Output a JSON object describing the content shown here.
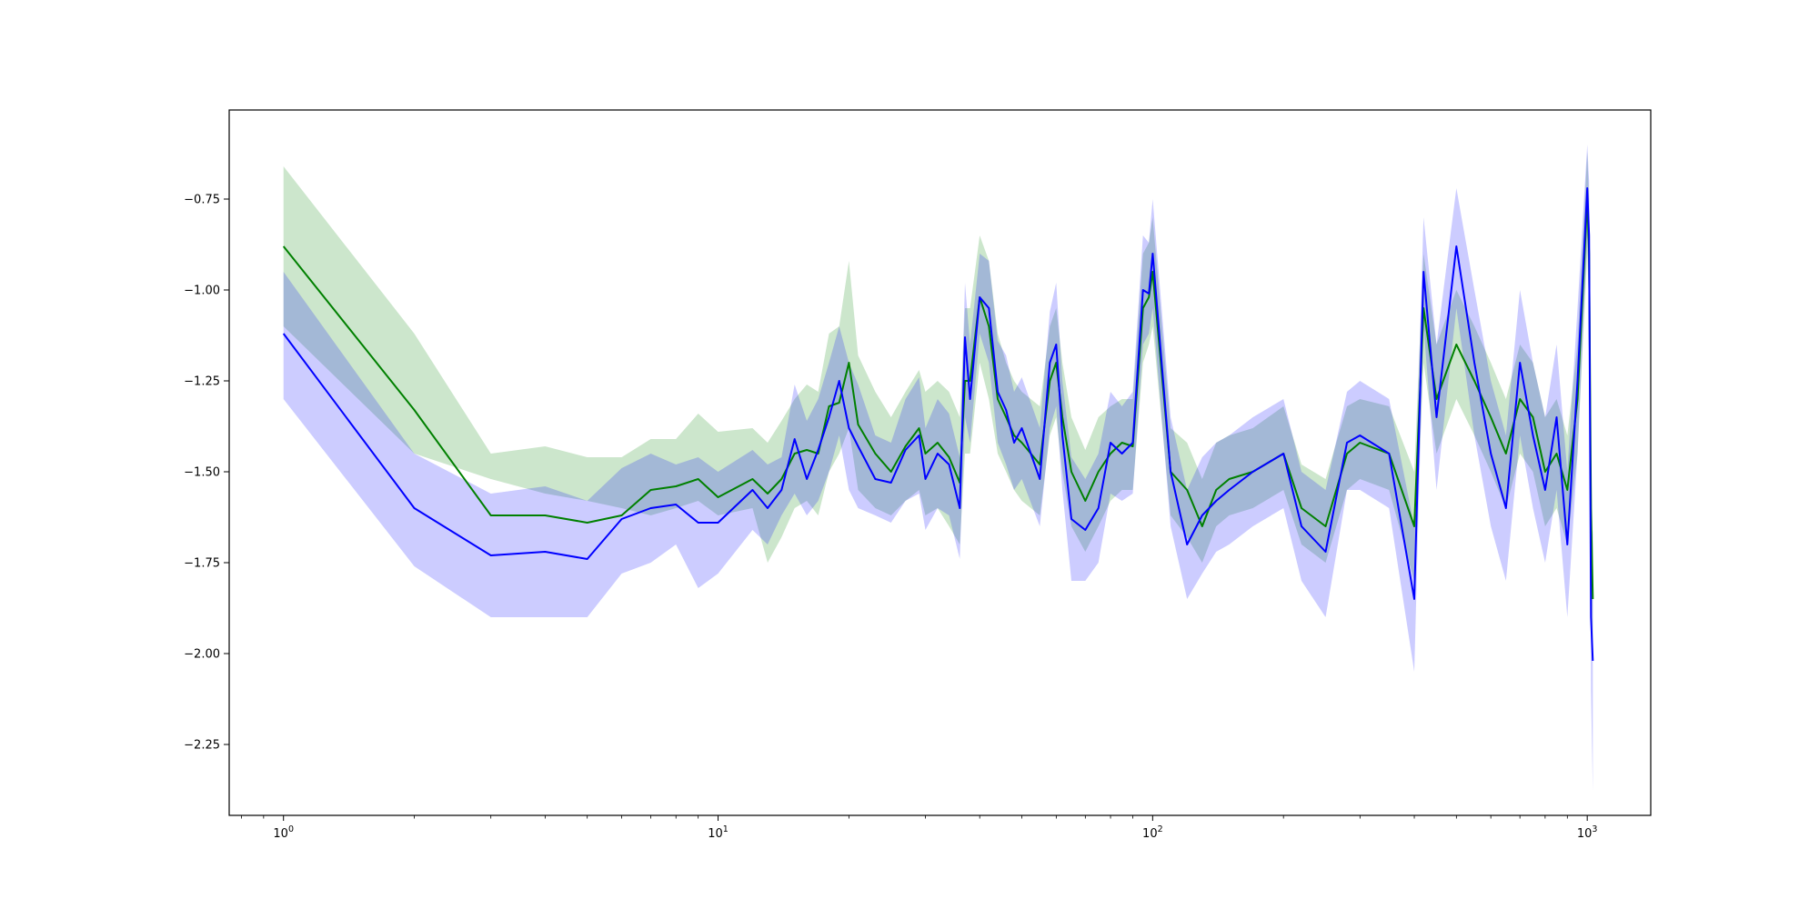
{
  "chart_data": {
    "type": "line",
    "title": "",
    "xlabel": "",
    "ylabel": "",
    "xscale": "log",
    "xlim": [
      0.75,
      1400
    ],
    "ylim": [
      -2.445,
      -0.505
    ],
    "grid": false,
    "legend": "none",
    "x_ticks": [
      {
        "value": 1,
        "label": "10^0"
      },
      {
        "value": 10,
        "label": "10^1"
      },
      {
        "value": 100,
        "label": "10^2"
      },
      {
        "value": 1000,
        "label": "10^3"
      }
    ],
    "y_ticks": [
      {
        "value": -0.75,
        "label": "−0.75"
      },
      {
        "value": -1.0,
        "label": "−1.00"
      },
      {
        "value": -1.25,
        "label": "−1.25"
      },
      {
        "value": -1.5,
        "label": "−1.50"
      },
      {
        "value": -1.75,
        "label": "−1.75"
      },
      {
        "value": -2.0,
        "label": "−2.00"
      },
      {
        "value": -2.25,
        "label": "−2.25"
      }
    ],
    "series": [
      {
        "color": "#008000",
        "band_color": "#008000",
        "band_opacity": 0.2,
        "x": [
          1,
          2,
          3,
          4,
          5,
          6,
          7,
          8,
          9,
          10,
          12,
          13,
          14,
          15,
          16,
          17,
          18,
          19,
          20,
          21,
          23,
          25,
          27,
          29,
          30,
          32,
          34,
          36,
          37,
          38,
          40,
          42,
          44,
          46,
          48,
          50,
          55,
          58,
          60,
          62,
          65,
          70,
          75,
          80,
          85,
          90,
          95,
          98,
          100,
          110,
          120,
          130,
          140,
          150,
          170,
          200,
          220,
          250,
          280,
          300,
          350,
          400,
          420,
          450,
          500,
          550,
          600,
          650,
          700,
          750,
          800,
          850,
          900,
          950,
          1000,
          1010,
          1020,
          1030
        ],
        "y": [
          -0.88,
          -1.33,
          -1.62,
          -1.62,
          -1.64,
          -1.62,
          -1.55,
          -1.54,
          -1.52,
          -1.57,
          -1.52,
          -1.56,
          -1.52,
          -1.45,
          -1.44,
          -1.45,
          -1.32,
          -1.31,
          -1.2,
          -1.37,
          -1.45,
          -1.5,
          -1.43,
          -1.38,
          -1.45,
          -1.42,
          -1.46,
          -1.53,
          -1.25,
          -1.25,
          -1.02,
          -1.1,
          -1.3,
          -1.35,
          -1.4,
          -1.42,
          -1.48,
          -1.25,
          -1.2,
          -1.35,
          -1.5,
          -1.58,
          -1.5,
          -1.45,
          -1.42,
          -1.43,
          -1.05,
          -1.02,
          -0.95,
          -1.5,
          -1.55,
          -1.65,
          -1.55,
          -1.52,
          -1.5,
          -1.45,
          -1.6,
          -1.65,
          -1.45,
          -1.42,
          -1.45,
          -1.65,
          -1.05,
          -1.3,
          -1.15,
          -1.25,
          -1.35,
          -1.45,
          -1.3,
          -1.35,
          -1.5,
          -1.45,
          -1.55,
          -1.3,
          -0.75,
          -0.9,
          -1.6,
          -1.85
        ],
        "lower": [
          -1.1,
          -1.45,
          -1.52,
          -1.56,
          -1.58,
          -1.6,
          -1.62,
          -1.6,
          -1.58,
          -1.62,
          -1.6,
          -1.75,
          -1.68,
          -1.6,
          -1.58,
          -1.62,
          -1.5,
          -1.45,
          -1.38,
          -1.55,
          -1.6,
          -1.62,
          -1.58,
          -1.55,
          -1.62,
          -1.6,
          -1.65,
          -1.7,
          -1.45,
          -1.45,
          -1.2,
          -1.3,
          -1.45,
          -1.5,
          -1.55,
          -1.58,
          -1.62,
          -1.4,
          -1.35,
          -1.5,
          -1.65,
          -1.72,
          -1.65,
          -1.58,
          -1.55,
          -1.55,
          -1.2,
          -1.15,
          -1.1,
          -1.62,
          -1.68,
          -1.75,
          -1.65,
          -1.62,
          -1.6,
          -1.55,
          -1.7,
          -1.75,
          -1.55,
          -1.52,
          -1.55,
          -1.8,
          -1.2,
          -1.45,
          -1.3,
          -1.4,
          -1.5,
          -1.6,
          -1.45,
          -1.5,
          -1.65,
          -1.6,
          -1.7,
          -1.45,
          -0.9,
          -1.05,
          -1.75,
          -2.0
        ],
        "upper": [
          -0.66,
          -1.12,
          -1.45,
          -1.43,
          -1.46,
          -1.46,
          -1.41,
          -1.41,
          -1.34,
          -1.39,
          -1.38,
          -1.42,
          -1.36,
          -1.3,
          -1.26,
          -1.28,
          -1.12,
          -1.1,
          -0.92,
          -1.18,
          -1.28,
          -1.35,
          -1.28,
          -1.22,
          -1.28,
          -1.25,
          -1.28,
          -1.35,
          -1.05,
          -1.05,
          -0.85,
          -0.92,
          -1.12,
          -1.2,
          -1.25,
          -1.28,
          -1.32,
          -1.1,
          -1.05,
          -1.2,
          -1.35,
          -1.44,
          -1.35,
          -1.32,
          -1.3,
          -1.3,
          -0.9,
          -0.87,
          -0.8,
          -1.38,
          -1.42,
          -1.52,
          -1.42,
          -1.4,
          -1.38,
          -1.32,
          -1.48,
          -1.52,
          -1.32,
          -1.3,
          -1.32,
          -1.5,
          -0.9,
          -1.15,
          -1.0,
          -1.1,
          -1.2,
          -1.3,
          -1.15,
          -1.2,
          -1.35,
          -1.3,
          -1.4,
          -1.15,
          -0.62,
          -0.75,
          -1.45,
          -1.7
        ]
      },
      {
        "color": "#0000ff",
        "band_color": "#0000ff",
        "band_opacity": 0.2,
        "x": [
          1,
          2,
          3,
          4,
          5,
          6,
          7,
          8,
          9,
          10,
          12,
          13,
          14,
          15,
          16,
          17,
          18,
          19,
          20,
          21,
          23,
          25,
          27,
          29,
          30,
          32,
          34,
          36,
          37,
          38,
          40,
          42,
          44,
          46,
          48,
          50,
          55,
          58,
          60,
          62,
          65,
          70,
          75,
          80,
          85,
          90,
          95,
          98,
          100,
          110,
          120,
          130,
          140,
          150,
          170,
          200,
          220,
          250,
          280,
          300,
          350,
          400,
          420,
          450,
          500,
          550,
          600,
          650,
          700,
          750,
          800,
          850,
          900,
          950,
          1000,
          1010,
          1020,
          1030
        ],
        "y": [
          -1.12,
          -1.6,
          -1.73,
          -1.72,
          -1.74,
          -1.63,
          -1.6,
          -1.59,
          -1.64,
          -1.64,
          -1.55,
          -1.6,
          -1.55,
          -1.41,
          -1.52,
          -1.44,
          -1.35,
          -1.25,
          -1.38,
          -1.43,
          -1.52,
          -1.53,
          -1.44,
          -1.4,
          -1.52,
          -1.45,
          -1.48,
          -1.6,
          -1.13,
          -1.3,
          -1.02,
          -1.05,
          -1.28,
          -1.33,
          -1.42,
          -1.38,
          -1.52,
          -1.2,
          -1.15,
          -1.4,
          -1.63,
          -1.66,
          -1.6,
          -1.42,
          -1.45,
          -1.42,
          -1.0,
          -1.01,
          -0.9,
          -1.5,
          -1.7,
          -1.62,
          -1.58,
          -1.55,
          -1.5,
          -1.45,
          -1.65,
          -1.72,
          -1.42,
          -1.4,
          -1.45,
          -1.85,
          -0.95,
          -1.35,
          -0.88,
          -1.2,
          -1.45,
          -1.6,
          -1.2,
          -1.4,
          -1.55,
          -1.35,
          -1.7,
          -1.25,
          -0.72,
          -0.85,
          -1.9,
          -2.02
        ],
        "lower": [
          -1.3,
          -1.76,
          -1.9,
          -1.9,
          -1.9,
          -1.78,
          -1.75,
          -1.7,
          -1.82,
          -1.78,
          -1.66,
          -1.7,
          -1.62,
          -1.56,
          -1.62,
          -1.58,
          -1.5,
          -1.4,
          -1.55,
          -1.6,
          -1.62,
          -1.64,
          -1.58,
          -1.56,
          -1.66,
          -1.6,
          -1.62,
          -1.74,
          -1.35,
          -1.42,
          -1.12,
          -1.2,
          -1.42,
          -1.48,
          -1.55,
          -1.52,
          -1.65,
          -1.38,
          -1.32,
          -1.55,
          -1.8,
          -1.8,
          -1.75,
          -1.56,
          -1.58,
          -1.56,
          -1.15,
          -1.12,
          -1.05,
          -1.65,
          -1.85,
          -1.78,
          -1.72,
          -1.7,
          -1.65,
          -1.6,
          -1.8,
          -1.9,
          -1.55,
          -1.55,
          -1.6,
          -2.05,
          -1.1,
          -1.55,
          -1.05,
          -1.4,
          -1.65,
          -1.8,
          -1.4,
          -1.6,
          -1.75,
          -1.55,
          -1.9,
          -1.45,
          -0.85,
          -1.0,
          -2.1,
          -2.38
        ],
        "upper": [
          -0.95,
          -1.45,
          -1.56,
          -1.54,
          -1.58,
          -1.49,
          -1.45,
          -1.48,
          -1.46,
          -1.5,
          -1.44,
          -1.48,
          -1.46,
          -1.26,
          -1.36,
          -1.3,
          -1.2,
          -1.1,
          -1.2,
          -1.26,
          -1.4,
          -1.42,
          -1.3,
          -1.24,
          -1.38,
          -1.3,
          -1.34,
          -1.46,
          -0.98,
          -1.15,
          -0.9,
          -0.92,
          -1.14,
          -1.18,
          -1.28,
          -1.24,
          -1.38,
          -1.06,
          -0.98,
          -1.25,
          -1.46,
          -1.52,
          -1.45,
          -1.28,
          -1.32,
          -1.28,
          -0.85,
          -0.87,
          -0.75,
          -1.35,
          -1.55,
          -1.46,
          -1.42,
          -1.4,
          -1.35,
          -1.3,
          -1.5,
          -1.55,
          -1.28,
          -1.25,
          -1.3,
          -1.65,
          -0.8,
          -1.15,
          -0.72,
          -1.0,
          -1.25,
          -1.4,
          -1.0,
          -1.2,
          -1.35,
          -1.15,
          -1.5,
          -1.05,
          -0.6,
          -0.7,
          -1.7,
          -1.66
        ]
      }
    ]
  }
}
